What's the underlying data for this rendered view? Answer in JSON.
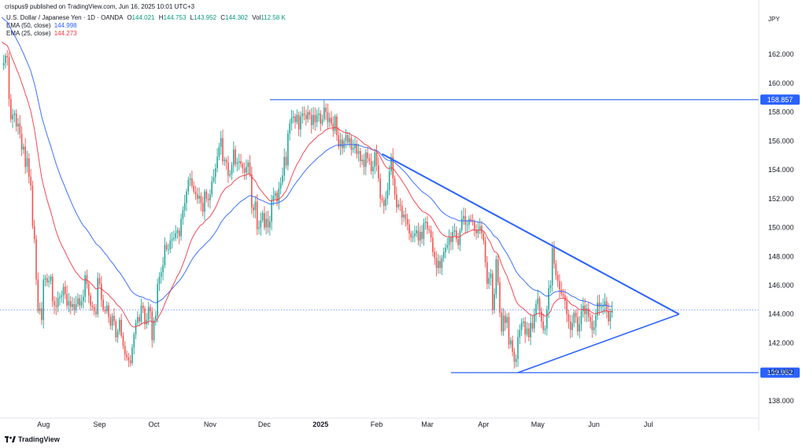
{
  "header": {
    "published": "crispus9 published on TradingView.com, Jun 16, 2025 10:01 UTC+3",
    "symbol": "U.S. Dollar / Japanese Yen · 1D · OANDA",
    "o_label": "O",
    "o": "144.021",
    "h_label": "H",
    "h": "144.753",
    "l_label": "L",
    "l": "143.952",
    "c_label": "C",
    "c": "144.302",
    "vol_label": "Vol",
    "vol": "112.58 K",
    "ema50_label": "EMA (50, close)",
    "ema50": "144.998",
    "ema25_label": "EMA (25, close)",
    "ema25": "144.273"
  },
  "footer": {
    "brand": "TradingView"
  },
  "colors": {
    "up": "#26a69a",
    "down": "#ef5350",
    "ema50": "#2962ff",
    "ema25": "#f23645",
    "line": "#2962ff",
    "badge": "#2962ff"
  },
  "chart_data": {
    "type": "candlestick",
    "currency": "JPY",
    "ylim": [
      136.8,
      163.8
    ],
    "y_ticks": [
      "162.000",
      "160.000",
      "158.000",
      "156.000",
      "154.000",
      "152.000",
      "150.000",
      "148.000",
      "146.000",
      "144.000",
      "142.000",
      "140.000",
      "138.000"
    ],
    "x_ticks": [
      {
        "label": "Aug",
        "day": 0,
        "bold": false
      },
      {
        "label": "Sep",
        "day": 31,
        "bold": false
      },
      {
        "label": "Oct",
        "day": 61,
        "bold": false
      },
      {
        "label": "Nov",
        "day": 92,
        "bold": false
      },
      {
        "label": "Dec",
        "day": 122,
        "bold": false
      },
      {
        "label": "2025",
        "day": 153,
        "bold": true
      },
      {
        "label": "Feb",
        "day": 184,
        "bold": false
      },
      {
        "label": "Mar",
        "day": 212,
        "bold": false
      },
      {
        "label": "Apr",
        "day": 243,
        "bold": false
      },
      {
        "label": "May",
        "day": 273,
        "bold": false
      },
      {
        "label": "Jun",
        "day": 304,
        "bold": false
      },
      {
        "label": "Jul",
        "day": 334,
        "bold": false
      }
    ],
    "xlim": [
      -24,
      395
    ],
    "closes": [
      [
        -23,
        161.2
      ],
      [
        -22,
        161.4
      ],
      [
        -21,
        161.9
      ],
      [
        -20,
        161.8
      ],
      [
        -19,
        158.9
      ],
      [
        -18,
        157.5
      ],
      [
        -17,
        157.8
      ],
      [
        -16,
        157.9
      ],
      [
        -15,
        157.0
      ],
      [
        -14,
        157.2
      ],
      [
        -13,
        156.5
      ],
      [
        -12,
        155.4
      ],
      [
        -11,
        155.6
      ],
      [
        -10,
        154.2
      ],
      [
        -9,
        154.8
      ],
      [
        -8,
        153.5
      ],
      [
        -7,
        152.9
      ],
      [
        -6,
        150.1
      ],
      [
        -5,
        149.2
      ],
      [
        -4,
        146.4
      ],
      [
        -3,
        144.2
      ],
      [
        -2,
        144.4
      ],
      [
        -1,
        143.6
      ],
      [
        0,
        146.4
      ],
      [
        1,
        146.5
      ],
      [
        2,
        146.2
      ],
      [
        3,
        146.3
      ],
      [
        4,
        146.6
      ],
      [
        5,
        144.9
      ],
      [
        6,
        144.6
      ],
      [
        7,
        144.5
      ],
      [
        8,
        145.1
      ],
      [
        9,
        145.2
      ],
      [
        10,
        145.3
      ],
      [
        11,
        145.9
      ],
      [
        12,
        145.4
      ],
      [
        13,
        144.6
      ],
      [
        14,
        144.9
      ],
      [
        15,
        144.5
      ],
      [
        16,
        144.7
      ],
      [
        17,
        144.3
      ],
      [
        18,
        144.7
      ],
      [
        19,
        145.1
      ],
      [
        20,
        144.6
      ],
      [
        21,
        144.9
      ],
      [
        22,
        145.2
      ],
      [
        23,
        146.7
      ],
      [
        24,
        146.1
      ],
      [
        25,
        145.3
      ],
      [
        26,
        144.6
      ],
      [
        27,
        144.5
      ],
      [
        28,
        144.2
      ],
      [
        29,
        144.0
      ],
      [
        30,
        146.5
      ],
      [
        31,
        146.1
      ],
      [
        32,
        145.0
      ],
      [
        33,
        144.3
      ],
      [
        34,
        144.2
      ],
      [
        35,
        144.6
      ],
      [
        36,
        143.8
      ],
      [
        37,
        143.2
      ],
      [
        38,
        143.9
      ],
      [
        39,
        143.5
      ],
      [
        40,
        142.4
      ],
      [
        41,
        142.8
      ],
      [
        42,
        143.6
      ],
      [
        43,
        142.5
      ],
      [
        44,
        141.8
      ],
      [
        45,
        141.2
      ],
      [
        46,
        141.0
      ],
      [
        47,
        140.8
      ],
      [
        48,
        140.6
      ],
      [
        49,
        141.7
      ],
      [
        50,
        142.6
      ],
      [
        51,
        143.4
      ],
      [
        52,
        143.8
      ],
      [
        53,
        143.5
      ],
      [
        54,
        144.6
      ],
      [
        55,
        144.4
      ],
      [
        56,
        143.3
      ],
      [
        57,
        143.6
      ],
      [
        58,
        144.5
      ],
      [
        59,
        144.2
      ],
      [
        60,
        142.2
      ],
      [
        61,
        143.6
      ],
      [
        62,
        143.9
      ],
      [
        63,
        146.1
      ],
      [
        64,
        146.6
      ],
      [
        65,
        146.9
      ],
      [
        66,
        147.4
      ],
      [
        67,
        148.8
      ],
      [
        68,
        148.5
      ],
      [
        69,
        148.5
      ],
      [
        70,
        149.1
      ],
      [
        71,
        149.2
      ],
      [
        72,
        149.3
      ],
      [
        73,
        149.6
      ],
      [
        74,
        149.8
      ],
      [
        75,
        149.4
      ],
      [
        76,
        150.6
      ],
      [
        77,
        151.2
      ],
      [
        78,
        151.7
      ],
      [
        79,
        152.5
      ],
      [
        80,
        153.3
      ],
      [
        81,
        153.4
      ],
      [
        82,
        152.9
      ],
      [
        83,
        152.5
      ],
      [
        84,
        152.3
      ],
      [
        85,
        152.0
      ],
      [
        86,
        152.2
      ],
      [
        87,
        151.7
      ],
      [
        88,
        151.1
      ],
      [
        89,
        152.5
      ],
      [
        90,
        152.0
      ],
      [
        91,
        151.9
      ],
      [
        92,
        152.3
      ],
      [
        93,
        153.2
      ],
      [
        94,
        153.5
      ],
      [
        95,
        154.1
      ],
      [
        96,
        154.9
      ],
      [
        97,
        155.6
      ],
      [
        98,
        156.2
      ],
      [
        99,
        154.6
      ],
      [
        100,
        154.7
      ],
      [
        101,
        154.5
      ],
      [
        102,
        153.6
      ],
      [
        103,
        153.7
      ],
      [
        104,
        154.3
      ],
      [
        105,
        155.4
      ],
      [
        106,
        154.4
      ],
      [
        107,
        154.5
      ],
      [
        108,
        154.6
      ],
      [
        109,
        154.4
      ],
      [
        110,
        154.1
      ],
      [
        111,
        153.8
      ],
      [
        112,
        154.2
      ],
      [
        113,
        154.5
      ],
      [
        114,
        153.7
      ],
      [
        115,
        151.4
      ],
      [
        116,
        151.2
      ],
      [
        117,
        151.8
      ],
      [
        118,
        149.9
      ],
      [
        119,
        150.0
      ],
      [
        120,
        150.5
      ],
      [
        121,
        151.0
      ],
      [
        122,
        150.0
      ],
      [
        123,
        150.6
      ],
      [
        124,
        150.0
      ],
      [
        125,
        150.4
      ],
      [
        126,
        151.9
      ],
      [
        127,
        152.2
      ],
      [
        128,
        152.4
      ],
      [
        129,
        151.8
      ],
      [
        130,
        152.7
      ],
      [
        131,
        153.1
      ],
      [
        132,
        153.6
      ],
      [
        133,
        154.9
      ],
      [
        134,
        154.3
      ],
      [
        135,
        156.5
      ],
      [
        136,
        157.2
      ],
      [
        137,
        157.6
      ],
      [
        138,
        157.7
      ],
      [
        139,
        157.3
      ],
      [
        140,
        157.8
      ],
      [
        141,
        156.8
      ],
      [
        142,
        157.7
      ],
      [
        143,
        157.9
      ],
      [
        144,
        157.8
      ],
      [
        145,
        157.5
      ],
      [
        146,
        158.0
      ],
      [
        147,
        157.8
      ],
      [
        148,
        157.1
      ],
      [
        149,
        157.8
      ],
      [
        150,
        157.3
      ],
      [
        151,
        157.8
      ],
      [
        152,
        157.9
      ],
      [
        153,
        157.2
      ],
      [
        154,
        157.5
      ],
      [
        155,
        158.3
      ],
      [
        156,
        158.0
      ],
      [
        157,
        157.3
      ],
      [
        158,
        157.6
      ],
      [
        159,
        157.2
      ],
      [
        160,
        156.7
      ],
      [
        161,
        157.7
      ],
      [
        162,
        156.4
      ],
      [
        163,
        155.6
      ],
      [
        164,
        156.1
      ],
      [
        165,
        155.5
      ],
      [
        166,
        156.0
      ],
      [
        167,
        156.4
      ],
      [
        168,
        155.9
      ],
      [
        169,
        156.2
      ],
      [
        170,
        155.4
      ],
      [
        171,
        155.5
      ],
      [
        172,
        155.8
      ],
      [
        173,
        155.1
      ],
      [
        174,
        155.3
      ],
      [
        175,
        154.6
      ],
      [
        176,
        154.7
      ],
      [
        177,
        154.2
      ],
      [
        178,
        155.2
      ],
      [
        179,
        154.8
      ],
      [
        180,
        154.6
      ],
      [
        181,
        153.9
      ],
      [
        182,
        154.2
      ],
      [
        183,
        155.2
      ],
      [
        184,
        154.3
      ],
      [
        185,
        153.4
      ],
      [
        186,
        152.0
      ],
      [
        187,
        151.9
      ],
      [
        188,
        151.5
      ],
      [
        189,
        152.0
      ],
      [
        190,
        152.6
      ],
      [
        191,
        153.9
      ],
      [
        192,
        154.9
      ],
      [
        193,
        153.4
      ],
      [
        194,
        152.3
      ],
      [
        195,
        151.4
      ],
      [
        196,
        151.6
      ],
      [
        197,
        151.5
      ],
      [
        198,
        150.7
      ],
      [
        199,
        150.9
      ],
      [
        200,
        150.6
      ],
      [
        201,
        150.2
      ],
      [
        202,
        149.6
      ],
      [
        203,
        149.3
      ],
      [
        204,
        149.4
      ],
      [
        205,
        149.6
      ],
      [
        206,
        149.8
      ],
      [
        207,
        149.1
      ],
      [
        208,
        149.7
      ],
      [
        209,
        149.2
      ],
      [
        210,
        150.3
      ],
      [
        211,
        150.4
      ],
      [
        212,
        149.9
      ],
      [
        213,
        149.8
      ],
      [
        214,
        149.3
      ],
      [
        215,
        148.3
      ],
      [
        216,
        147.9
      ],
      [
        217,
        147.2
      ],
      [
        218,
        147.7
      ],
      [
        219,
        147.2
      ],
      [
        220,
        147.9
      ],
      [
        221,
        148.3
      ],
      [
        222,
        148.6
      ],
      [
        223,
        148.8
      ],
      [
        224,
        149.3
      ],
      [
        225,
        149.0
      ],
      [
        226,
        149.7
      ],
      [
        227,
        149.8
      ],
      [
        228,
        149.2
      ],
      [
        229,
        148.8
      ],
      [
        230,
        149.8
      ],
      [
        231,
        150.6
      ],
      [
        232,
        150.8
      ],
      [
        233,
        150.2
      ],
      [
        234,
        150.2
      ],
      [
        235,
        150.6
      ],
      [
        236,
        150.5
      ],
      [
        237,
        150.4
      ],
      [
        238,
        149.8
      ],
      [
        239,
        149.6
      ],
      [
        240,
        149.8
      ],
      [
        241,
        150.1
      ],
      [
        242,
        149.6
      ],
      [
        243,
        149.1
      ],
      [
        244,
        147.6
      ],
      [
        245,
        146.1
      ],
      [
        246,
        146.5
      ],
      [
        247,
        146.8
      ],
      [
        248,
        144.3
      ],
      [
        249,
        145.4
      ],
      [
        250,
        147.8
      ],
      [
        251,
        146.2
      ],
      [
        252,
        144.1
      ],
      [
        253,
        142.8
      ],
      [
        254,
        143.9
      ],
      [
        255,
        143.4
      ],
      [
        256,
        143.8
      ],
      [
        257,
        141.9
      ],
      [
        258,
        142.2
      ],
      [
        259,
        141.4
      ],
      [
        260,
        140.7
      ],
      [
        261,
        140.9
      ],
      [
        262,
        142.4
      ],
      [
        263,
        142.9
      ],
      [
        264,
        143.4
      ],
      [
        265,
        143.5
      ],
      [
        266,
        142.6
      ],
      [
        267,
        143.0
      ],
      [
        268,
        142.4
      ],
      [
        269,
        143.4
      ],
      [
        270,
        143.0
      ],
      [
        271,
        144.0
      ],
      [
        272,
        144.7
      ],
      [
        273,
        145.1
      ],
      [
        274,
        144.2
      ],
      [
        275,
        143.5
      ],
      [
        276,
        142.9
      ],
      [
        277,
        143.0
      ],
      [
        278,
        144.3
      ],
      [
        279,
        145.8
      ],
      [
        280,
        146.0
      ],
      [
        281,
        148.6
      ],
      [
        282,
        147.5
      ],
      [
        283,
        146.7
      ],
      [
        284,
        146.3
      ],
      [
        285,
        145.7
      ],
      [
        286,
        145.4
      ],
      [
        287,
        145.3
      ],
      [
        288,
        144.9
      ],
      [
        289,
        144.0
      ],
      [
        290,
        143.5
      ],
      [
        291,
        142.9
      ],
      [
        292,
        143.4
      ],
      [
        293,
        144.1
      ],
      [
        294,
        143.8
      ],
      [
        295,
        142.8
      ],
      [
        296,
        143.3
      ],
      [
        297,
        144.2
      ],
      [
        298,
        144.6
      ],
      [
        299,
        144.0
      ],
      [
        300,
        144.4
      ],
      [
        301,
        143.8
      ],
      [
        302,
        143.5
      ],
      [
        303,
        142.9
      ],
      [
        304,
        143.1
      ],
      [
        305,
        143.9
      ],
      [
        306,
        144.8
      ],
      [
        307,
        144.5
      ],
      [
        308,
        144.5
      ],
      [
        309,
        144.6
      ],
      [
        310,
        144.9
      ],
      [
        311,
        144.2
      ],
      [
        312,
        143.5
      ],
      [
        313,
        144.1
      ],
      [
        314,
        144.3
      ]
    ],
    "horizontal_levels": [
      {
        "label": "158.857",
        "value": 158.857,
        "from_day": 125,
        "to_day": 377
      },
      {
        "label": "139.952",
        "value": 139.952,
        "from_day": 225,
        "to_day": 377
      }
    ],
    "triangle": {
      "upper": [
        [
          187,
          155.1
        ],
        [
          351,
          144.0
        ]
      ],
      "lower": [
        [
          262,
          139.95
        ],
        [
          351,
          144.0
        ]
      ]
    },
    "last_price": 144.302
  }
}
